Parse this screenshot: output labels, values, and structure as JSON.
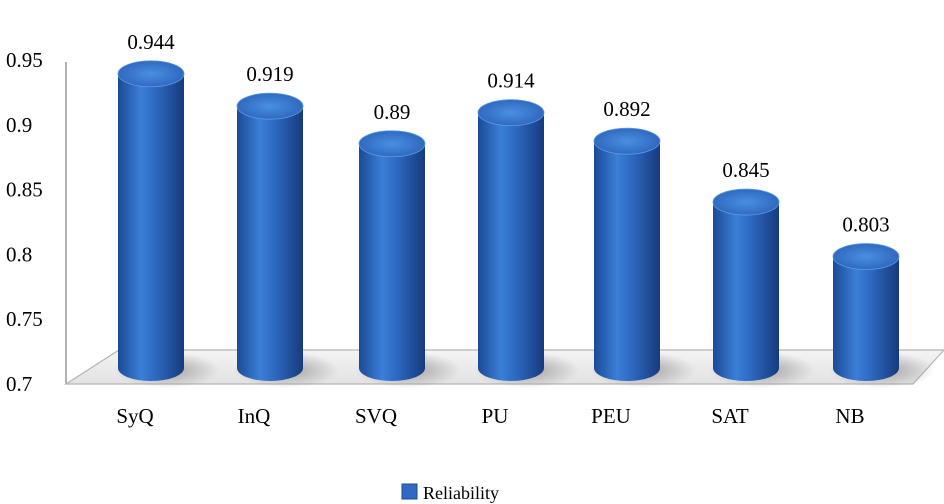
{
  "chart_data": {
    "type": "bar",
    "categories": [
      "SyQ",
      "InQ",
      "SVQ",
      "PU",
      "PEU",
      "SAT",
      "NB"
    ],
    "series": [
      {
        "name": "Reliability",
        "values": [
          0.944,
          0.919,
          0.89,
          0.914,
          0.892,
          0.845,
          0.803
        ],
        "data_labels": [
          "0.944",
          "0.919",
          "0.89",
          "0.914",
          "0.892",
          "0.845",
          "0.803"
        ],
        "color": "#2f6bc4"
      }
    ],
    "yticks": [
      "0.7",
      "0.75",
      "0.8",
      "0.85",
      "0.9",
      "0.95"
    ],
    "ylim": [
      0.7,
      0.95
    ],
    "grid": false,
    "legend_position": "bottom",
    "style": "3d-cylinder"
  }
}
